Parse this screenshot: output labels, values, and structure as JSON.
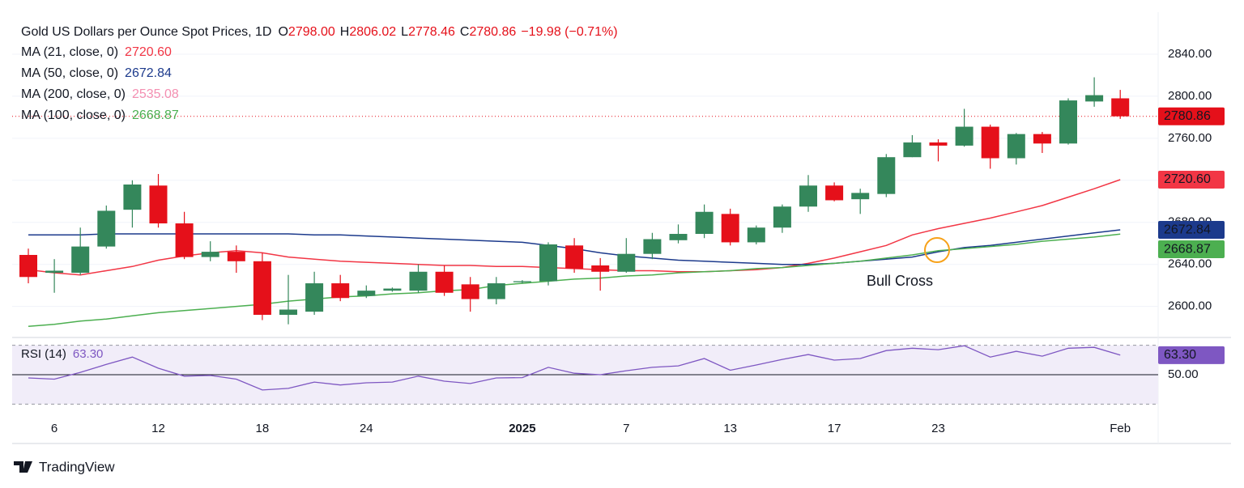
{
  "chart_data": {
    "type": "candlestick",
    "header": {
      "title": "Gold US Dollars per Ounce Spot Prices, 1D",
      "items": [
        {
          "key": "O",
          "text": "2798.00"
        },
        {
          "key": "H",
          "text": "2806.02"
        },
        {
          "key": "L",
          "text": "2778.46"
        },
        {
          "key": "C",
          "text": "2780.86"
        },
        {
          "key": "",
          "text": "−19.98 (−0.71%)"
        }
      ],
      "color": "#e5101a"
    },
    "categories": [
      null,
      "6",
      null,
      null,
      null,
      "12",
      null,
      null,
      null,
      "18",
      null,
      null,
      null,
      "24",
      null,
      null,
      null,
      null,
      null,
      "2025",
      null,
      null,
      null,
      "7",
      null,
      null,
      null,
      "13",
      null,
      null,
      null,
      "17",
      null,
      null,
      null,
      "23",
      null,
      null,
      null,
      null,
      null,
      null,
      "Feb"
    ],
    "ylim": [
      2572,
      2880
    ],
    "yticks": [
      {
        "value": 2600,
        "label": "2600.00"
      },
      {
        "value": 2640,
        "label": "2640.00"
      },
      {
        "value": 2680,
        "label": "2680.00"
      },
      {
        "value": 2720,
        "label": "2720.00"
      },
      {
        "value": 2760,
        "label": "2760.00"
      },
      {
        "value": 2800,
        "label": "2800.00"
      },
      {
        "value": 2840,
        "label": "2840.00"
      }
    ],
    "grid": true,
    "candles": {
      "open": [
        2649,
        2632,
        2632,
        2657,
        2692,
        2715,
        2679,
        2647,
        2652,
        2643,
        2592,
        2595,
        2622,
        2610,
        2615,
        2615,
        2633,
        2621,
        2607,
        2623,
        2624,
        2658,
        2639,
        2633,
        2650,
        2663,
        2669,
        2688,
        2661,
        2675,
        2695,
        2715,
        2702,
        2707,
        2742,
        2756,
        2753,
        2771,
        2741,
        2764,
        2755,
        2795,
        2798
      ],
      "high": [
        2655,
        2645,
        2675,
        2696,
        2720,
        2726,
        2690,
        2662,
        2658,
        2651,
        2630,
        2633,
        2630,
        2620,
        2618,
        2640,
        2639,
        2628,
        2628,
        2625,
        2661,
        2665,
        2646,
        2665,
        2670,
        2678,
        2697,
        2693,
        2677,
        2697,
        2725,
        2718,
        2712,
        2745,
        2763,
        2759,
        2788,
        2773,
        2765,
        2766,
        2798,
        2818,
        2806.02
      ],
      "low": [
        2622,
        2613,
        2630,
        2655,
        2675,
        2675,
        2645,
        2643,
        2632,
        2587,
        2583,
        2592,
        2605,
        2608,
        2614,
        2613,
        2610,
        2595,
        2602,
        2622,
        2620,
        2632,
        2615,
        2632,
        2645,
        2660,
        2665,
        2658,
        2659,
        2670,
        2690,
        2700,
        2688,
        2704,
        2742,
        2738,
        2752,
        2731,
        2735,
        2746,
        2754,
        2790,
        2778.46
      ],
      "close": [
        2628,
        2634,
        2657,
        2691,
        2716,
        2679,
        2647,
        2652,
        2643,
        2592,
        2597,
        2622,
        2608,
        2615,
        2617,
        2633,
        2613,
        2607,
        2622,
        2624,
        2659,
        2636,
        2633,
        2650,
        2664,
        2669,
        2690,
        2661,
        2675,
        2695,
        2715,
        2701,
        2708,
        2742,
        2756,
        2753,
        2771,
        2741,
        2764,
        2755,
        2796,
        2801,
        2780.86
      ],
      "up_color": "#34875b",
      "down_color": "#e5101a",
      "last_label": "2780.86"
    },
    "series": [
      {
        "name": "MA (21, close, 0)",
        "color": "#f23645",
        "value_label": "2720.60",
        "values": [
          2635,
          2632,
          2630,
          2634,
          2638,
          2644,
          2648,
          2651,
          2653,
          2651,
          2647,
          2645,
          2643,
          2642,
          2641,
          2640,
          2639,
          2639,
          2638,
          2638,
          2637,
          2636,
          2635,
          2634,
          2634,
          2633,
          2633,
          2634,
          2635,
          2637,
          2641,
          2646,
          2652,
          2658,
          2668,
          2674,
          2679,
          2684,
          2690,
          2696,
          2704,
          2712,
          2720.6
        ]
      },
      {
        "name": "MA (50, close, 0)",
        "color": "#1c3a8c",
        "value_label": "2672.84",
        "values": [
          2668,
          2668,
          2668,
          2669,
          2669,
          2669,
          2669,
          2669,
          2669,
          2669,
          2669,
          2668,
          2668,
          2667,
          2666,
          2665,
          2664,
          2663,
          2662,
          2661,
          2658,
          2655,
          2651,
          2648,
          2646,
          2644,
          2643,
          2642,
          2641,
          2640,
          2640,
          2641,
          2643,
          2645,
          2647,
          2652,
          2656,
          2658,
          2661,
          2664,
          2667,
          2670,
          2672.84
        ]
      },
      {
        "name": "MA (200, close, 0)",
        "color": "#f48fb1",
        "value_label": "2535.08"
      },
      {
        "name": "MA (100, close, 0)",
        "color": "#4caf50",
        "value_label": "2668.87",
        "values": [
          2581,
          2583,
          2586,
          2588,
          2591,
          2594,
          2596,
          2598,
          2600,
          2602,
          2605,
          2607,
          2609,
          2610,
          2612,
          2613,
          2615,
          2616,
          2620,
          2622,
          2624,
          2626,
          2627,
          2629,
          2630,
          2632,
          2633,
          2634,
          2636,
          2637,
          2639,
          2641,
          2643,
          2646,
          2649,
          2653,
          2655,
          2657,
          2659,
          2662,
          2664,
          2666,
          2668.87
        ]
      }
    ],
    "annotations": [
      {
        "text": "Bull Cross",
        "color": "#f7a21b"
      }
    ],
    "rsi": {
      "name": "RSI (14)",
      "color": "#7e57c2",
      "value_label": "63.30",
      "ylim": [
        28,
        72
      ],
      "yticks": [
        {
          "value": 50,
          "label": "50.00"
        }
      ],
      "bands": [
        30,
        70
      ],
      "values": [
        47.8,
        47,
        51.6,
        57,
        62,
        54.4,
        49,
        49.5,
        47,
        39.6,
        40.7,
        45,
        43,
        44.5,
        45,
        49,
        45.6,
        44,
        47.8,
        48,
        55,
        51,
        50,
        52.7,
        55,
        56,
        61,
        53,
        56.6,
        60.4,
        63.7,
        59.9,
        61,
        66.4,
        68,
        67,
        69.7,
        62,
        65.9,
        62.6,
        68,
        68.6,
        63.3
      ]
    },
    "brand": "TradingView"
  }
}
